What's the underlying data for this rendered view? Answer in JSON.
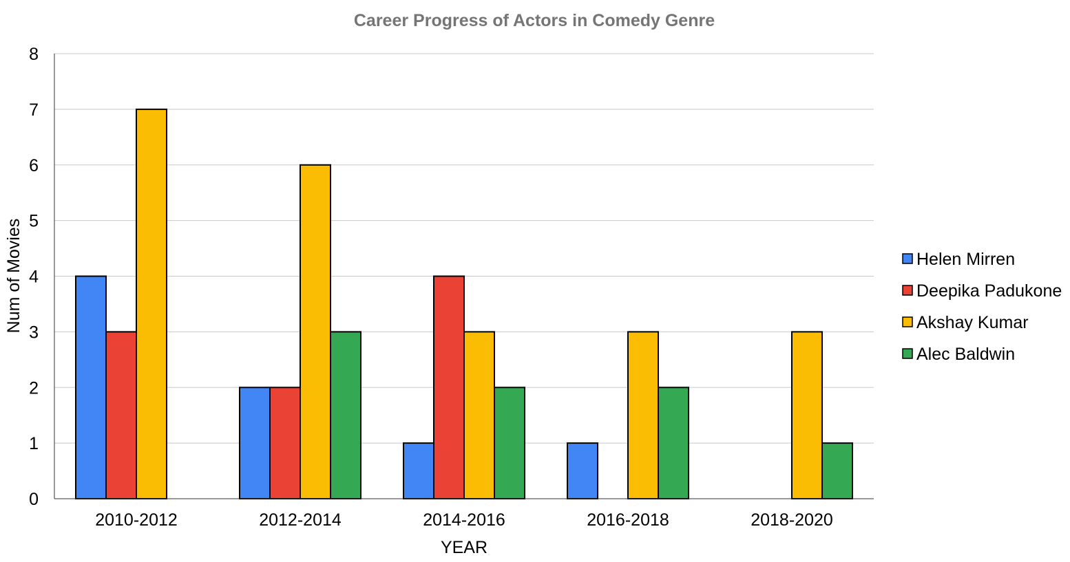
{
  "chart_data": {
    "type": "bar",
    "title": "Career Progress of Actors in Comedy Genre",
    "xlabel": "YEAR",
    "ylabel": "Num of Movies",
    "categories": [
      "2010-2012",
      "2012-2014",
      "2014-2016",
      "2016-2018",
      "2018-2020"
    ],
    "ylim": [
      0,
      8
    ],
    "yticks": [
      0,
      1,
      2,
      3,
      4,
      5,
      6,
      7,
      8
    ],
    "grid": true,
    "legend_position": "right",
    "series": [
      {
        "name": "Helen Mirren",
        "color": "#4285F4",
        "values": [
          4,
          2,
          1,
          1,
          0
        ]
      },
      {
        "name": "Deepika Padukone",
        "color": "#EA4335",
        "values": [
          3,
          2,
          4,
          0,
          0
        ]
      },
      {
        "name": "Akshay Kumar",
        "color": "#FBBC04",
        "values": [
          7,
          6,
          3,
          3,
          3
        ]
      },
      {
        "name": "Alec Baldwin",
        "color": "#34A853",
        "values": [
          0,
          3,
          2,
          2,
          1
        ]
      }
    ]
  }
}
